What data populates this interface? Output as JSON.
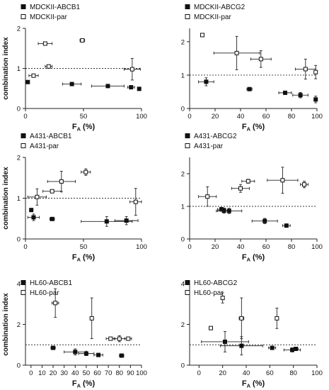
{
  "chart_data": [
    {
      "type": "scatter",
      "ylabel": "combination index",
      "xlabel_main": "F",
      "xlabel_sub": "A",
      "xlabel_unit": " (%)",
      "xlim": [
        0,
        100
      ],
      "ylim": [
        0,
        2
      ],
      "xticks": [
        0,
        50,
        100
      ],
      "yticks": [
        0,
        1,
        2
      ],
      "reference_line": 1,
      "legend": [
        "MDCKII-ABCB1",
        "MDCKII-par"
      ],
      "series": [
        {
          "name": "MDCKII-ABCB1",
          "filled": true,
          "points": [
            {
              "x": 2,
              "y": 0.66,
              "xerr": 1,
              "yerr": 0.02
            },
            {
              "x": 40,
              "y": 0.61,
              "xerr": 8,
              "yerr": 0.02
            },
            {
              "x": 71,
              "y": 0.56,
              "xerr": 14,
              "yerr": 0.02
            },
            {
              "x": 91,
              "y": 0.53,
              "xerr": 3,
              "yerr": 0.02
            },
            {
              "x": 98,
              "y": 0.49,
              "xerr": 1,
              "yerr": 0.02
            }
          ]
        },
        {
          "name": "MDCKII-par",
          "filled": false,
          "points": [
            {
              "x": 7,
              "y": 0.82,
              "xerr": 4,
              "yerr": 0.02
            },
            {
              "x": 20,
              "y": 1.05,
              "xerr": 3,
              "yerr": 0.04
            },
            {
              "x": 17,
              "y": 1.62,
              "xerr": 6,
              "yerr": 0.02
            },
            {
              "x": 49,
              "y": 1.7,
              "xerr": 2,
              "yerr": 0.02
            },
            {
              "x": 92,
              "y": 0.98,
              "xerr": 7,
              "yerr": 0.27
            }
          ]
        }
      ]
    },
    {
      "type": "scatter",
      "ylabel": "",
      "xlabel_main": "F",
      "xlabel_sub": "A",
      "xlabel_unit": " (%)",
      "xlim": [
        0,
        100
      ],
      "ylim": [
        0,
        2.4
      ],
      "xticks": [
        0,
        20,
        40,
        60,
        80,
        100
      ],
      "yticks": [
        0,
        1,
        2
      ],
      "reference_line": 1,
      "legend": [
        "MDCKII-ABCG2",
        "MDCKII-par"
      ],
      "series": [
        {
          "name": "MDCKII-ABCG2",
          "filled": true,
          "points": [
            {
              "x": 13,
              "y": 0.8,
              "xerr": 6,
              "yerr": 0.12
            },
            {
              "x": 47,
              "y": 0.58,
              "xerr": 2,
              "yerr": 0.03
            },
            {
              "x": 75,
              "y": 0.47,
              "xerr": 5,
              "yerr": 0.03
            },
            {
              "x": 87,
              "y": 0.4,
              "xerr": 6,
              "yerr": 0.08
            },
            {
              "x": 99,
              "y": 0.27,
              "xerr": 1,
              "yerr": 0.1
            }
          ]
        },
        {
          "name": "MDCKII-par",
          "filled": false,
          "points": [
            {
              "x": 10,
              "y": 2.2,
              "xerr": 1,
              "yerr": 0.05
            },
            {
              "x": 37,
              "y": 1.66,
              "xerr": 18,
              "yerr": 0.5
            },
            {
              "x": 56,
              "y": 1.48,
              "xerr": 8,
              "yerr": 0.25
            },
            {
              "x": 91,
              "y": 1.18,
              "xerr": 8,
              "yerr": 0.3
            },
            {
              "x": 99,
              "y": 1.09,
              "xerr": 1,
              "yerr": 0.2
            }
          ]
        }
      ]
    },
    {
      "type": "scatter",
      "ylabel": "combination index",
      "xlabel_main": "F",
      "xlabel_sub": "A",
      "xlabel_unit": " (%)",
      "xlim": [
        0,
        100
      ],
      "ylim": [
        0,
        2
      ],
      "xticks": [
        0,
        50,
        100
      ],
      "yticks": [
        0,
        1,
        2
      ],
      "reference_line": 1,
      "legend": [
        "A431-ABCB1",
        "A431-par"
      ],
      "series": [
        {
          "name": "A431-ABCB1",
          "filled": true,
          "points": [
            {
              "x": 5,
              "y": 0.71,
              "xerr": 0.5,
              "yerr": 0.02
            },
            {
              "x": 7,
              "y": 0.53,
              "xerr": 5,
              "yerr": 0.08
            },
            {
              "x": 23,
              "y": 0.49,
              "xerr": 2,
              "yerr": 0.02
            },
            {
              "x": 70,
              "y": 0.43,
              "xerr": 22,
              "yerr": 0.12
            },
            {
              "x": 87,
              "y": 0.45,
              "xerr": 10,
              "yerr": 0.1
            }
          ]
        },
        {
          "name": "A431-par",
          "filled": false,
          "points": [
            {
              "x": 10,
              "y": 1.03,
              "xerr": 8,
              "yerr": 0.2
            },
            {
              "x": 23,
              "y": 1.17,
              "xerr": 8,
              "yerr": 0.02
            },
            {
              "x": 31,
              "y": 1.41,
              "xerr": 12,
              "yerr": 0.25
            },
            {
              "x": 52,
              "y": 1.64,
              "xerr": 4,
              "yerr": 0.08
            },
            {
              "x": 95,
              "y": 0.91,
              "xerr": 5,
              "yerr": 0.33
            }
          ]
        }
      ]
    },
    {
      "type": "scatter",
      "ylabel": "",
      "xlabel_main": "F",
      "xlabel_sub": "A",
      "xlabel_unit": " (%)",
      "xlim": [
        0,
        100
      ],
      "ylim": [
        0,
        2.5
      ],
      "xticks": [
        0,
        20,
        40,
        60,
        80,
        100
      ],
      "yticks": [
        0,
        1,
        2
      ],
      "reference_line": 1,
      "legend": [
        "A431-ABCG2",
        "A431-par"
      ],
      "series": [
        {
          "name": "A431-ABCG2",
          "filled": true,
          "points": [
            {
              "x": 25,
              "y": 0.91,
              "xerr": 3,
              "yerr": 0.06
            },
            {
              "x": 27,
              "y": 0.87,
              "xerr": 5,
              "yerr": 0.08
            },
            {
              "x": 31,
              "y": 0.86,
              "xerr": 10,
              "yerr": 0.08
            },
            {
              "x": 59,
              "y": 0.55,
              "xerr": 10,
              "yerr": 0.08
            },
            {
              "x": 76,
              "y": 0.41,
              "xerr": 3,
              "yerr": 0.03
            }
          ]
        },
        {
          "name": "A431-par",
          "filled": false,
          "points": [
            {
              "x": 14,
              "y": 1.3,
              "xerr": 7,
              "yerr": 0.3
            },
            {
              "x": 40,
              "y": 1.55,
              "xerr": 7,
              "yerr": 0.12
            },
            {
              "x": 46,
              "y": 1.77,
              "xerr": 5,
              "yerr": 0.06
            },
            {
              "x": 73,
              "y": 1.8,
              "xerr": 12,
              "yerr": 0.4
            },
            {
              "x": 90,
              "y": 1.67,
              "xerr": 3,
              "yerr": 0.1
            }
          ]
        }
      ]
    },
    {
      "type": "scatter",
      "ylabel": "combination index",
      "xlabel_main": "F",
      "xlabel_sub": "A",
      "xlabel_unit": " (%)",
      "xlim": [
        -5,
        100
      ],
      "ylim": [
        0,
        4
      ],
      "xticks": [
        0,
        10,
        20,
        30,
        40,
        50,
        60,
        70,
        80,
        90,
        100
      ],
      "yticks": [
        0,
        2,
        4
      ],
      "reference_line": 1,
      "legend": [
        "HL60-ABCB1",
        "HL60-par"
      ],
      "series": [
        {
          "name": "HL60-ABCB1",
          "filled": true,
          "points": [
            {
              "x": 20,
              "y": 0.85,
              "xerr": 2,
              "yerr": 0.05
            },
            {
              "x": 40,
              "y": 0.65,
              "xerr": 10,
              "yerr": 0.15
            },
            {
              "x": 50,
              "y": 0.57,
              "xerr": 7,
              "yerr": 0.1
            },
            {
              "x": 61,
              "y": 0.5,
              "xerr": 4,
              "yerr": 0.08
            },
            {
              "x": 82,
              "y": 0.47,
              "xerr": 2,
              "yerr": 0.05
            }
          ]
        },
        {
          "name": "HL60-par",
          "filled": false,
          "points": [
            {
              "x": 22,
              "y": 3.05,
              "xerr": 3,
              "yerr": 0.7
            },
            {
              "x": 55,
              "y": 2.3,
              "xerr": 1,
              "yerr": 1.0
            },
            {
              "x": 72,
              "y": 1.3,
              "xerr": 4,
              "yerr": 0.05
            },
            {
              "x": 80,
              "y": 1.3,
              "xerr": 5,
              "yerr": 0.15
            },
            {
              "x": 88,
              "y": 1.3,
              "xerr": 3,
              "yerr": 0.05
            }
          ]
        }
      ]
    },
    {
      "type": "scatter",
      "ylabel": "",
      "xlabel_main": "F",
      "xlabel_sub": "A",
      "xlabel_unit": " (%)",
      "xlim": [
        -8,
        100
      ],
      "ylim": [
        0,
        4
      ],
      "xticks": [
        0,
        20,
        40,
        60,
        80,
        100
      ],
      "yticks": [
        0,
        2,
        4
      ],
      "reference_line": 1,
      "legend": [
        "HL60-ABCG2",
        "HL60-par"
      ],
      "series": [
        {
          "name": "HL60-ABCG2",
          "filled": true,
          "points": [
            {
              "x": 22,
              "y": 1.15,
              "xerr": 20,
              "yerr": 0.5
            },
            {
              "x": 36,
              "y": 0.95,
              "xerr": 18,
              "yerr": 0.45
            },
            {
              "x": 62,
              "y": 0.85,
              "xerr": 3,
              "yerr": 0.05
            },
            {
              "x": 79,
              "y": 0.75,
              "xerr": 7,
              "yerr": 0.1
            },
            {
              "x": 82,
              "y": 0.8,
              "xerr": 2,
              "yerr": 0.08
            }
          ]
        },
        {
          "name": "HL60-par",
          "filled": false,
          "points": [
            {
              "x": 10,
              "y": 1.82,
              "xerr": 0.5,
              "yerr": 0.05
            },
            {
              "x": 20,
              "y": 3.3,
              "xerr": 1,
              "yerr": 0.25
            },
            {
              "x": 36,
              "y": 2.3,
              "xerr": 2,
              "yerr": 1.0
            },
            {
              "x": 66,
              "y": 2.3,
              "xerr": 1,
              "yerr": 0.5
            }
          ]
        }
      ]
    }
  ]
}
